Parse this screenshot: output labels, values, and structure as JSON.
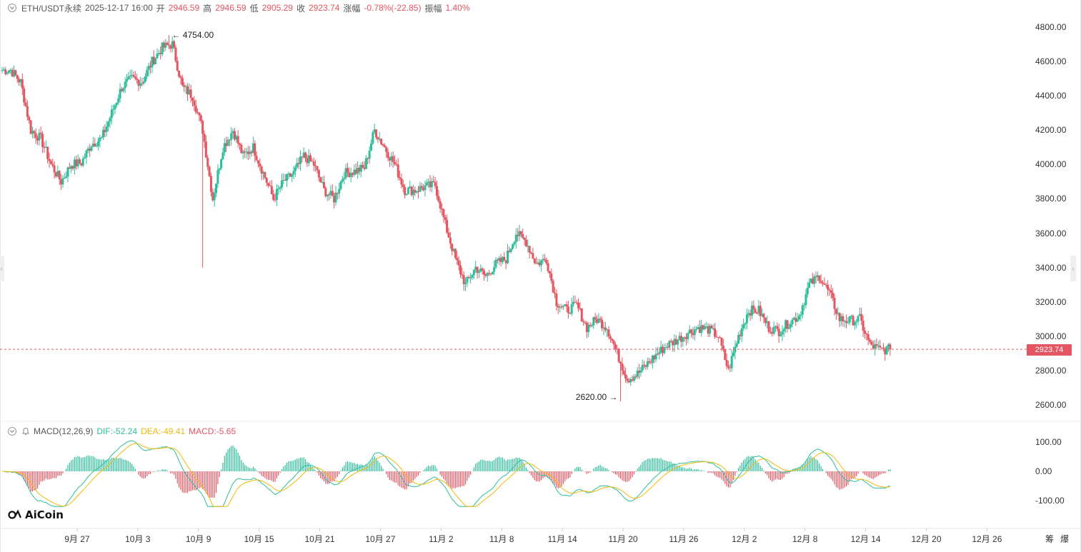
{
  "header": {
    "symbol": "ETH/USDT永续",
    "datetime": "2025-12-17 16:00",
    "open_label": "开",
    "open": "2946.59",
    "high_label": "高",
    "high": "2946.59",
    "low_label": "低",
    "low": "2905.29",
    "close_label": "收",
    "close": "2923.74",
    "change_label": "涨幅",
    "change": "-0.78%(-22.85)",
    "amplitude_label": "振幅",
    "amplitude": "1.40%"
  },
  "indicator": {
    "name": "MACD(12,26,9)",
    "dif": "DIF:-52.24",
    "dea": "DEA:-49.41",
    "macd": "MACD:-5.65"
  },
  "annotations": {
    "high_marker": "4754.00",
    "low_marker": "2620.00"
  },
  "last_price_tag": "2923.74",
  "price_axis_labels": [
    "4800.00",
    "4600.00",
    "4400.00",
    "4200.00",
    "4000.00",
    "3800.00",
    "3600.00",
    "3400.00",
    "3200.00",
    "3000.00",
    "2800.00",
    "2600.00"
  ],
  "macd_axis_labels": [
    "100.00",
    "0.00",
    "-100.00"
  ],
  "time_axis_labels": [
    "9月 27",
    "10月 3",
    "10月 9",
    "10月 15",
    "10月 21",
    "10月 27",
    "11月 2",
    "11月 8",
    "11月 14",
    "11月 20",
    "11月 26",
    "12月 2",
    "12月 8",
    "12月 14",
    "12月 20",
    "12月 26"
  ],
  "corner_buttons": [
    "筹",
    "爆"
  ],
  "logo_text": "AiCoin",
  "colors": {
    "up": "#2ebd9b",
    "down": "#e35561",
    "dif": "#2ebd9b",
    "dea": "#f0b90b",
    "last_price": "#e35561"
  },
  "chart_data": [
    {
      "type": "candlestick",
      "interval": "4h",
      "y_axis": {
        "min": 2600,
        "max": 4800,
        "step": 200
      },
      "x_range": [
        "2025-09-21",
        "2026-01-01"
      ],
      "last_price": 2923.74,
      "high": {
        "value": 4754.0,
        "date": "2025-10-07"
      },
      "low": {
        "value": 2620.0,
        "date": "2025-11-21"
      },
      "close_path": [
        [
          "2025-09-21",
          4550
        ],
        [
          "2025-09-22",
          4480
        ],
        [
          "2025-09-23",
          4200
        ],
        [
          "2025-09-24",
          4150
        ],
        [
          "2025-09-25",
          4000
        ],
        [
          "2025-09-26",
          3900
        ],
        [
          "2025-09-27",
          4000
        ],
        [
          "2025-09-28",
          4010
        ],
        [
          "2025-09-29",
          4120
        ],
        [
          "2025-09-30",
          4150
        ],
        [
          "2025-10-01",
          4300
        ],
        [
          "2025-10-02",
          4450
        ],
        [
          "2025-10-03",
          4500
        ],
        [
          "2025-10-04",
          4480
        ],
        [
          "2025-10-05",
          4600
        ],
        [
          "2025-10-06",
          4680
        ],
        [
          "2025-10-07",
          4700
        ],
        [
          "2025-10-08",
          4450
        ],
        [
          "2025-10-09",
          4400
        ],
        [
          "2025-10-10",
          4200
        ],
        [
          "2025-10-11",
          3800
        ],
        [
          "2025-10-12",
          4100
        ],
        [
          "2025-10-13",
          4200
        ],
        [
          "2025-10-14",
          4050
        ],
        [
          "2025-10-15",
          4100
        ],
        [
          "2025-10-16",
          3950
        ],
        [
          "2025-10-17",
          3800
        ],
        [
          "2025-10-18",
          3900
        ],
        [
          "2025-10-19",
          3950
        ],
        [
          "2025-10-20",
          4050
        ],
        [
          "2025-10-21",
          4000
        ],
        [
          "2025-10-22",
          3850
        ],
        [
          "2025-10-23",
          3800
        ],
        [
          "2025-10-24",
          3950
        ],
        [
          "2025-10-25",
          3960
        ],
        [
          "2025-10-26",
          3980
        ],
        [
          "2025-10-27",
          4200
        ],
        [
          "2025-10-28",
          4100
        ],
        [
          "2025-10-29",
          4000
        ],
        [
          "2025-10-30",
          3850
        ],
        [
          "2025-10-31",
          3850
        ],
        [
          "2025-11-01",
          3870
        ],
        [
          "2025-11-02",
          3880
        ],
        [
          "2025-11-03",
          3650
        ],
        [
          "2025-11-04",
          3450
        ],
        [
          "2025-11-05",
          3300
        ],
        [
          "2025-11-06",
          3400
        ],
        [
          "2025-11-07",
          3350
        ],
        [
          "2025-11-08",
          3420
        ],
        [
          "2025-11-09",
          3450
        ],
        [
          "2025-11-10",
          3600
        ],
        [
          "2025-11-11",
          3550
        ],
        [
          "2025-11-12",
          3420
        ],
        [
          "2025-11-13",
          3450
        ],
        [
          "2025-11-14",
          3200
        ],
        [
          "2025-11-15",
          3150
        ],
        [
          "2025-11-16",
          3180
        ],
        [
          "2025-11-17",
          3050
        ],
        [
          "2025-11-18",
          3100
        ],
        [
          "2025-11-19",
          3050
        ],
        [
          "2025-11-20",
          2900
        ],
        [
          "2025-11-21",
          2750
        ],
        [
          "2025-11-22",
          2780
        ],
        [
          "2025-11-23",
          2840
        ],
        [
          "2025-11-24",
          2900
        ],
        [
          "2025-11-25",
          2950
        ],
        [
          "2025-11-26",
          2980
        ],
        [
          "2025-11-27",
          3020
        ],
        [
          "2025-11-28",
          3050
        ],
        [
          "2025-11-29",
          3040
        ],
        [
          "2025-11-30",
          3000
        ],
        [
          "2025-12-01",
          2800
        ],
        [
          "2025-12-02",
          3000
        ],
        [
          "2025-12-03",
          3150
        ],
        [
          "2025-12-04",
          3150
        ],
        [
          "2025-12-05",
          3050
        ],
        [
          "2025-12-06",
          3030
        ],
        [
          "2025-12-07",
          3080
        ],
        [
          "2025-12-08",
          3120
        ],
        [
          "2025-12-09",
          3300
        ],
        [
          "2025-12-10",
          3350
        ],
        [
          "2025-12-11",
          3250
        ],
        [
          "2025-12-12",
          3100
        ],
        [
          "2025-12-13",
          3090
        ],
        [
          "2025-12-14",
          3100
        ],
        [
          "2025-12-15",
          2950
        ],
        [
          "2025-12-16",
          2920
        ],
        [
          "2025-12-17",
          2923.74
        ]
      ]
    },
    {
      "type": "line",
      "indicator": "MACD(12,26,9)",
      "y_axis": {
        "min": -100,
        "max": 100,
        "step": 100
      },
      "series": [
        {
          "name": "DIF",
          "value": -52.24
        },
        {
          "name": "DEA",
          "value": -49.41
        },
        {
          "name": "MACD",
          "value": -5.65
        }
      ]
    }
  ]
}
